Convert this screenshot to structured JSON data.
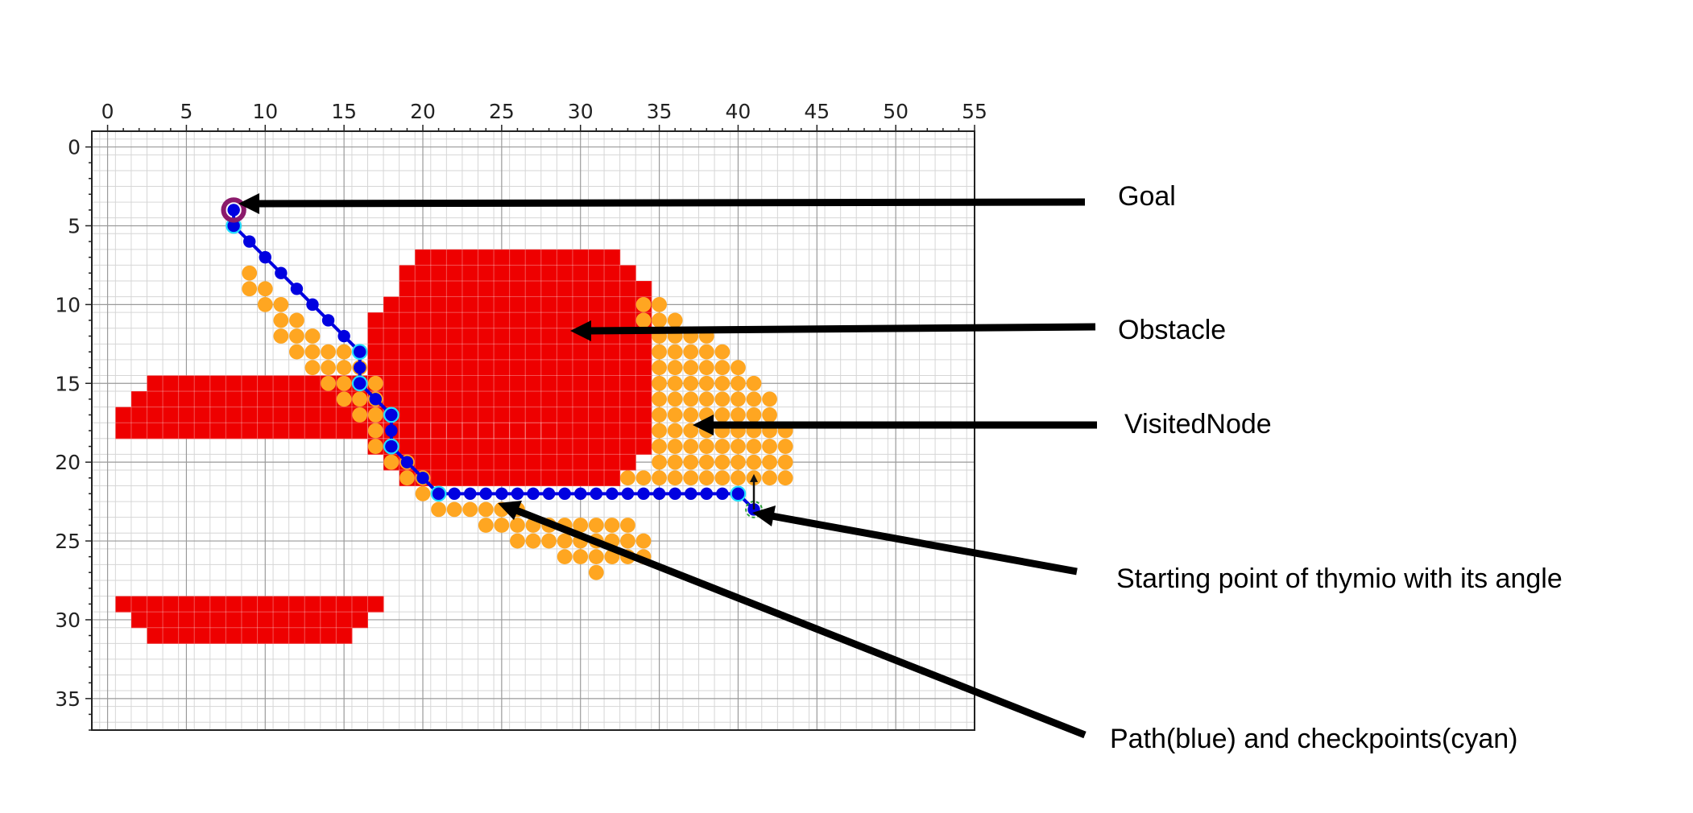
{
  "chart_data": {
    "type": "scatter",
    "xlim": [
      -1,
      55
    ],
    "ylim": [
      37,
      -1
    ],
    "x_ticks": [
      "0",
      "5",
      "10",
      "15",
      "20",
      "25",
      "30",
      "35",
      "40",
      "45",
      "50",
      "55"
    ],
    "y_ticks": [
      "0",
      "5",
      "10",
      "15",
      "20",
      "25",
      "30",
      "35"
    ],
    "grid": true,
    "x_axis_position": "top",
    "obstacles": [
      {
        "rows": [
          [
            3,
            15,
            17
          ],
          [
            2,
            16,
            17
          ],
          [
            1,
            17,
            17
          ],
          [
            1,
            18,
            28
          ],
          [
            1,
            29,
            17
          ],
          [
            2,
            30,
            16
          ],
          [
            3,
            31,
            15
          ]
        ]
      },
      {
        "rows": [
          [
            20,
            7,
            32
          ],
          [
            19,
            8,
            33
          ],
          [
            19,
            9,
            34
          ],
          [
            18,
            10,
            34
          ],
          [
            17,
            11,
            34
          ],
          [
            17,
            12,
            34
          ],
          [
            17,
            13,
            34
          ],
          [
            17,
            14,
            34
          ],
          [
            17,
            15,
            34
          ],
          [
            17,
            16,
            34
          ],
          [
            17,
            17,
            34
          ],
          [
            17,
            18,
            34
          ],
          [
            17,
            19,
            34
          ],
          [
            18,
            20,
            33
          ],
          [
            19,
            21,
            32
          ]
        ]
      }
    ],
    "visited_rows": [
      [
        9,
        8,
        9
      ],
      [
        9,
        9,
        9
      ],
      [
        10,
        9,
        10
      ],
      [
        10,
        10,
        11
      ],
      [
        11,
        11,
        12
      ],
      [
        11,
        12,
        13
      ],
      [
        12,
        13,
        15
      ],
      [
        13,
        14,
        16
      ],
      [
        14,
        15,
        17
      ],
      [
        15,
        16,
        17
      ],
      [
        16,
        17,
        17
      ],
      [
        17,
        18,
        17
      ],
      [
        17,
        19,
        17
      ],
      [
        18,
        20,
        19
      ],
      [
        19,
        21,
        20
      ],
      [
        20,
        22,
        20
      ],
      [
        21,
        23,
        26
      ],
      [
        24,
        24,
        33
      ],
      [
        26,
        25,
        34
      ],
      [
        29,
        26,
        34
      ],
      [
        31,
        27,
        31
      ],
      [
        34,
        10,
        35
      ],
      [
        34,
        11,
        36
      ],
      [
        35,
        12,
        38
      ],
      [
        35,
        13,
        39
      ],
      [
        35,
        14,
        40
      ],
      [
        35,
        15,
        41
      ],
      [
        35,
        16,
        42
      ],
      [
        35,
        17,
        42
      ],
      [
        35,
        18,
        43
      ],
      [
        35,
        19,
        43
      ],
      [
        35,
        20,
        43
      ],
      [
        33,
        21,
        43
      ]
    ],
    "path": [
      [
        8,
        4
      ],
      [
        8,
        5
      ],
      [
        9,
        6
      ],
      [
        10,
        7
      ],
      [
        11,
        8
      ],
      [
        12,
        9
      ],
      [
        13,
        10
      ],
      [
        14,
        11
      ],
      [
        15,
        12
      ],
      [
        16,
        13
      ],
      [
        16,
        14
      ],
      [
        16,
        15
      ],
      [
        17,
        16
      ],
      [
        18,
        17
      ],
      [
        18,
        18
      ],
      [
        18,
        19
      ],
      [
        19,
        20
      ],
      [
        20,
        21
      ],
      [
        21,
        22
      ],
      [
        22,
        22
      ],
      [
        23,
        22
      ],
      [
        24,
        22
      ],
      [
        25,
        22
      ],
      [
        26,
        22
      ],
      [
        27,
        22
      ],
      [
        28,
        22
      ],
      [
        29,
        22
      ],
      [
        30,
        22
      ],
      [
        31,
        22
      ],
      [
        32,
        22
      ],
      [
        33,
        22
      ],
      [
        34,
        22
      ],
      [
        35,
        22
      ],
      [
        36,
        22
      ],
      [
        37,
        22
      ],
      [
        38,
        22
      ],
      [
        39,
        22
      ],
      [
        40,
        22
      ],
      [
        41,
        23
      ]
    ],
    "checkpoints": [
      [
        8,
        5
      ],
      [
        16,
        13
      ],
      [
        16,
        15
      ],
      [
        18,
        17
      ],
      [
        18,
        19
      ],
      [
        21,
        22
      ],
      [
        40,
        22
      ]
    ],
    "goal": [
      8,
      4
    ],
    "start": [
      41,
      23
    ],
    "colors": {
      "obstacle": "#ee0000",
      "visited": "#ffa621",
      "path": "#0000e0",
      "checkpoint": "#22e0ff",
      "goal": "#8b1a6b",
      "start_arrow": "#111111"
    }
  },
  "annotations": {
    "goal": "Goal",
    "obstacle": "Obstacle",
    "visited": "VisitedNode",
    "start": "Starting point of thymio with its angle",
    "path": "Path(blue) and checkpoints(cyan)"
  }
}
